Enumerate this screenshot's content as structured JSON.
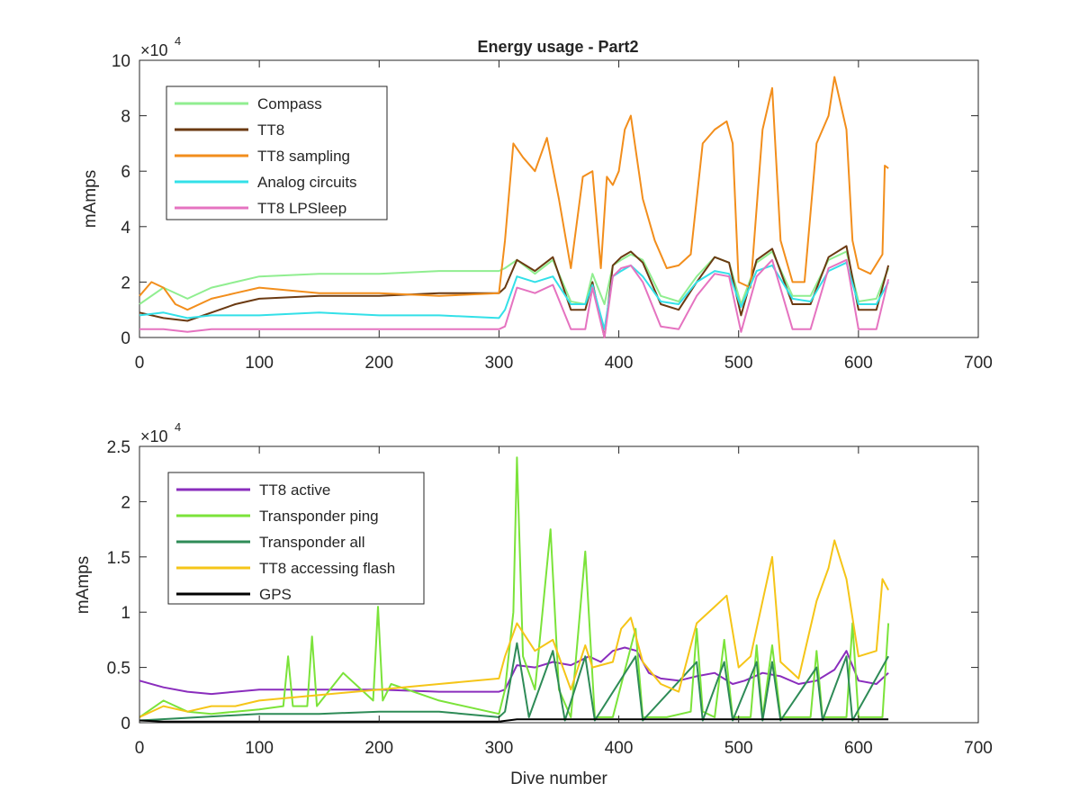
{
  "figure": {
    "title": "Energy usage - Part2",
    "exponent_base": "×10",
    "exponent_power": "4"
  },
  "chart_data": [
    {
      "type": "line",
      "title": "Energy usage - Part2",
      "xlabel": "",
      "ylabel": "mAmps",
      "y_multiplier_label": "×10^4",
      "xlim": [
        0,
        700
      ],
      "ylim": [
        0,
        10
      ],
      "x_ticks": [
        "0",
        "100",
        "200",
        "300",
        "400",
        "500",
        "600",
        "700"
      ],
      "y_ticks": [
        "0",
        "2",
        "4",
        "6",
        "8",
        "10"
      ],
      "legend_position": "top-left",
      "series": [
        {
          "name": "Compass",
          "color": "#90ee90",
          "x": [
            0,
            20,
            40,
            60,
            80,
            100,
            150,
            200,
            250,
            300,
            305,
            315,
            330,
            345,
            360,
            372,
            378,
            388,
            395,
            402,
            410,
            420,
            435,
            450,
            465,
            480,
            492,
            502,
            515,
            528,
            545,
            560,
            575,
            590,
            600,
            615,
            625
          ],
          "y": [
            1.2,
            1.8,
            1.4,
            1.8,
            2.0,
            2.2,
            2.3,
            2.3,
            2.4,
            2.4,
            2.5,
            2.8,
            2.3,
            2.8,
            1.3,
            1.2,
            2.3,
            1.2,
            2.6,
            2.8,
            3.0,
            2.8,
            1.5,
            1.3,
            2.2,
            2.9,
            2.7,
            1.2,
            2.7,
            3.1,
            1.5,
            1.5,
            2.8,
            3.1,
            1.3,
            1.4,
            2.5
          ]
        },
        {
          "name": "TT8",
          "color": "#6b3a12",
          "x": [
            0,
            20,
            40,
            60,
            80,
            100,
            150,
            200,
            250,
            300,
            305,
            315,
            330,
            345,
            360,
            372,
            378,
            388,
            395,
            402,
            410,
            420,
            435,
            450,
            465,
            480,
            492,
            502,
            515,
            528,
            545,
            560,
            575,
            590,
            600,
            615,
            625
          ],
          "y": [
            0.9,
            0.7,
            0.6,
            0.9,
            1.2,
            1.4,
            1.5,
            1.5,
            1.6,
            1.6,
            1.8,
            2.8,
            2.4,
            2.9,
            1.0,
            1.0,
            2.0,
            0.0,
            2.6,
            2.9,
            3.1,
            2.7,
            1.2,
            1.0,
            2.0,
            2.9,
            2.7,
            0.8,
            2.8,
            3.2,
            1.2,
            1.2,
            2.9,
            3.3,
            1.0,
            1.0,
            2.6
          ]
        },
        {
          "name": "TT8 sampling",
          "color": "#f28e1c",
          "x": [
            0,
            10,
            20,
            30,
            40,
            60,
            80,
            100,
            150,
            200,
            250,
            300,
            305,
            312,
            320,
            330,
            340,
            350,
            360,
            370,
            378,
            385,
            390,
            395,
            400,
            405,
            410,
            420,
            430,
            440,
            450,
            460,
            470,
            480,
            490,
            495,
            500,
            510,
            520,
            528,
            535,
            545,
            555,
            565,
            575,
            580,
            590,
            595,
            600,
            610,
            620,
            622,
            625
          ],
          "y": [
            1.5,
            2.0,
            1.8,
            1.2,
            1.0,
            1.4,
            1.6,
            1.8,
            1.6,
            1.6,
            1.5,
            1.6,
            3.5,
            7.0,
            6.5,
            6.0,
            7.2,
            5.0,
            2.5,
            5.8,
            6.0,
            2.5,
            5.8,
            5.5,
            6.0,
            7.5,
            8.0,
            5.0,
            3.5,
            2.5,
            2.6,
            3.0,
            7.0,
            7.5,
            7.8,
            7.0,
            2.0,
            1.8,
            7.5,
            9.0,
            3.5,
            2.0,
            2.0,
            7.0,
            8.0,
            9.4,
            7.5,
            3.5,
            2.5,
            2.3,
            3.0,
            6.2,
            6.1
          ]
        },
        {
          "name": "Analog circuits",
          "color": "#33e0e8",
          "x": [
            0,
            20,
            40,
            60,
            80,
            100,
            150,
            200,
            250,
            300,
            305,
            315,
            330,
            345,
            360,
            372,
            378,
            388,
            395,
            402,
            410,
            420,
            435,
            450,
            465,
            480,
            492,
            502,
            515,
            528,
            545,
            560,
            575,
            590,
            600,
            615,
            625
          ],
          "y": [
            0.8,
            0.9,
            0.7,
            0.8,
            0.8,
            0.8,
            0.9,
            0.8,
            0.8,
            0.7,
            1.0,
            2.2,
            2.0,
            2.2,
            1.2,
            1.2,
            1.9,
            0.3,
            2.2,
            2.4,
            2.6,
            2.2,
            1.3,
            1.2,
            2.0,
            2.4,
            2.3,
            1.1,
            2.4,
            2.6,
            1.4,
            1.3,
            2.4,
            2.7,
            1.2,
            1.2,
            2.0
          ]
        },
        {
          "name": "TT8 LPSleep",
          "color": "#e573c0",
          "x": [
            0,
            20,
            40,
            60,
            80,
            100,
            150,
            200,
            250,
            300,
            305,
            315,
            330,
            345,
            360,
            372,
            378,
            388,
            395,
            402,
            410,
            420,
            435,
            450,
            465,
            480,
            492,
            502,
            515,
            528,
            545,
            560,
            575,
            590,
            600,
            615,
            625
          ],
          "y": [
            0.3,
            0.3,
            0.2,
            0.3,
            0.3,
            0.3,
            0.3,
            0.3,
            0.3,
            0.3,
            0.4,
            1.8,
            1.6,
            1.9,
            0.3,
            0.3,
            1.8,
            0.0,
            2.2,
            2.5,
            2.6,
            2.0,
            0.4,
            0.3,
            1.5,
            2.3,
            2.2,
            0.2,
            2.2,
            2.8,
            0.3,
            0.3,
            2.5,
            2.8,
            0.3,
            0.3,
            2.1
          ]
        }
      ]
    },
    {
      "type": "line",
      "title": "",
      "xlabel": "Dive number",
      "ylabel": "mAmps",
      "y_multiplier_label": "×10^4",
      "xlim": [
        0,
        700
      ],
      "ylim": [
        0,
        2.5
      ],
      "x_ticks": [
        "0",
        "100",
        "200",
        "300",
        "400",
        "500",
        "600",
        "700"
      ],
      "y_ticks": [
        "0",
        "0.5",
        "1",
        "1.5",
        "2",
        "2.5"
      ],
      "legend_position": "top-left",
      "series": [
        {
          "name": "TT8 active",
          "color": "#8a2dbd",
          "x": [
            0,
            20,
            40,
            60,
            80,
            100,
            150,
            200,
            250,
            300,
            305,
            315,
            330,
            345,
            360,
            375,
            385,
            395,
            405,
            415,
            425,
            435,
            450,
            465,
            480,
            495,
            505,
            520,
            535,
            550,
            565,
            580,
            590,
            600,
            615,
            625
          ],
          "y": [
            0.38,
            0.32,
            0.28,
            0.26,
            0.28,
            0.3,
            0.3,
            0.3,
            0.28,
            0.28,
            0.3,
            0.52,
            0.5,
            0.55,
            0.52,
            0.6,
            0.55,
            0.65,
            0.68,
            0.65,
            0.45,
            0.4,
            0.38,
            0.42,
            0.45,
            0.35,
            0.38,
            0.45,
            0.42,
            0.35,
            0.38,
            0.48,
            0.65,
            0.38,
            0.35,
            0.45
          ]
        },
        {
          "name": "Transponder ping",
          "color": "#7be33a",
          "x": [
            0,
            20,
            40,
            60,
            80,
            100,
            120,
            124,
            128,
            140,
            144,
            148,
            170,
            195,
            199,
            203,
            210,
            250,
            300,
            305,
            312,
            315,
            320,
            330,
            343,
            350,
            360,
            372,
            380,
            395,
            414,
            420,
            440,
            460,
            465,
            470,
            480,
            488,
            495,
            510,
            515,
            520,
            528,
            535,
            545,
            560,
            565,
            570,
            590,
            595,
            600,
            620,
            625
          ],
          "y": [
            0.05,
            0.2,
            0.1,
            0.08,
            0.1,
            0.12,
            0.15,
            0.6,
            0.15,
            0.15,
            0.78,
            0.15,
            0.45,
            0.2,
            1.05,
            0.2,
            0.35,
            0.2,
            0.08,
            0.3,
            1.0,
            2.4,
            0.6,
            0.3,
            1.75,
            0.3,
            0.05,
            1.55,
            0.05,
            0.05,
            0.85,
            0.05,
            0.05,
            0.1,
            0.85,
            0.1,
            0.05,
            0.75,
            0.05,
            0.05,
            0.7,
            0.05,
            0.7,
            0.05,
            0.05,
            0.05,
            0.65,
            0.05,
            0.05,
            0.9,
            0.05,
            0.05,
            0.9
          ]
        },
        {
          "name": "Transponder all",
          "color": "#2e8b57",
          "x": [
            0,
            50,
            100,
            150,
            200,
            250,
            300,
            305,
            315,
            325,
            345,
            355,
            372,
            380,
            414,
            420,
            465,
            470,
            488,
            495,
            515,
            520,
            528,
            535,
            565,
            570,
            590,
            595,
            625
          ],
          "y": [
            0.02,
            0.05,
            0.08,
            0.08,
            0.1,
            0.1,
            0.05,
            0.1,
            0.72,
            0.05,
            0.65,
            0.02,
            0.6,
            0.02,
            0.6,
            0.02,
            0.55,
            0.02,
            0.55,
            0.02,
            0.55,
            0.02,
            0.55,
            0.02,
            0.5,
            0.02,
            0.6,
            0.02,
            0.6
          ]
        },
        {
          "name": "TT8 accessing flash",
          "color": "#f5c518",
          "x": [
            0,
            20,
            40,
            60,
            80,
            100,
            150,
            200,
            250,
            300,
            305,
            315,
            330,
            345,
            360,
            372,
            378,
            395,
            402,
            410,
            420,
            435,
            450,
            465,
            480,
            490,
            500,
            510,
            520,
            528,
            535,
            550,
            565,
            575,
            580,
            590,
            600,
            615,
            620,
            625
          ],
          "y": [
            0.05,
            0.15,
            0.1,
            0.15,
            0.15,
            0.2,
            0.25,
            0.3,
            0.35,
            0.4,
            0.6,
            0.9,
            0.65,
            0.75,
            0.3,
            0.7,
            0.5,
            0.55,
            0.85,
            0.95,
            0.55,
            0.35,
            0.28,
            0.9,
            1.05,
            1.15,
            0.5,
            0.6,
            1.1,
            1.5,
            0.55,
            0.4,
            1.1,
            1.4,
            1.65,
            1.3,
            0.6,
            0.65,
            1.3,
            1.2
          ]
        },
        {
          "name": "GPS",
          "color": "#000000",
          "x": [
            0,
            20,
            100,
            200,
            300,
            315,
            400,
            500,
            600,
            625
          ],
          "y": [
            0.02,
            0.01,
            0.01,
            0.01,
            0.01,
            0.03,
            0.03,
            0.03,
            0.03,
            0.03
          ]
        }
      ]
    }
  ]
}
